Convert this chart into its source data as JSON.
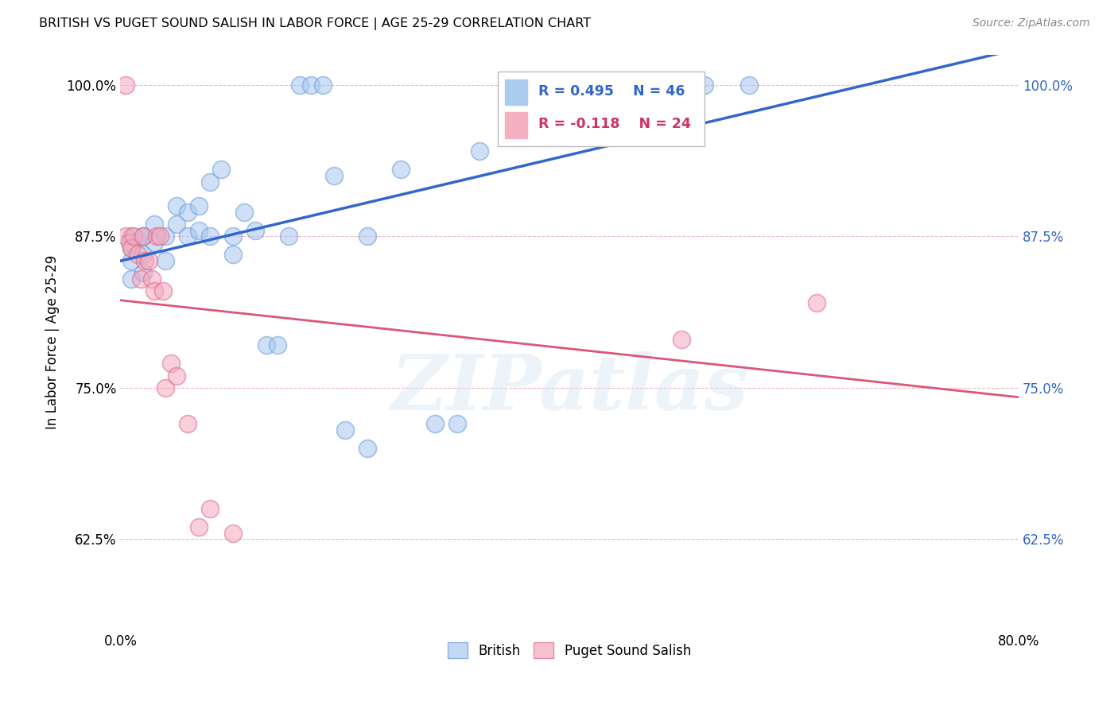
{
  "title": "BRITISH VS PUGET SOUND SALISH IN LABOR FORCE | AGE 25-29 CORRELATION CHART",
  "source": "Source: ZipAtlas.com",
  "ylabel": "In Labor Force | Age 25-29",
  "watermark": "ZIPatlas",
  "xlim": [
    0.0,
    0.8
  ],
  "ylim": [
    0.55,
    1.025
  ],
  "xticks": [
    0.0,
    0.1,
    0.2,
    0.3,
    0.4,
    0.5,
    0.6,
    0.7,
    0.8
  ],
  "xticklabels": [
    "0.0%",
    "",
    "",
    "",
    "",
    "",
    "",
    "",
    "80.0%"
  ],
  "yticks": [
    0.625,
    0.75,
    0.875,
    1.0
  ],
  "yticklabels": [
    "62.5%",
    "75.0%",
    "87.5%",
    "100.0%"
  ],
  "blue_R": 0.495,
  "blue_N": 46,
  "pink_R": -0.118,
  "pink_N": 24,
  "blue_color": "#a8c8f0",
  "pink_color": "#f4a8bc",
  "blue_line_color": "#3366cc",
  "pink_line_color": "#dd5577",
  "legend_label_british": "British",
  "legend_label_salish": "Puget Sound Salish",
  "blue_x": [
    0.01,
    0.01,
    0.01,
    0.01,
    0.02,
    0.02,
    0.02,
    0.02,
    0.03,
    0.03,
    0.04,
    0.04,
    0.05,
    0.05,
    0.06,
    0.06,
    0.07,
    0.07,
    0.08,
    0.08,
    0.09,
    0.1,
    0.1,
    0.11,
    0.12,
    0.13,
    0.14,
    0.15,
    0.16,
    0.17,
    0.18,
    0.19,
    0.2,
    0.22,
    0.22,
    0.25,
    0.28,
    0.3,
    0.32,
    0.36,
    0.38,
    0.4,
    0.42,
    0.5,
    0.52,
    0.56
  ],
  "blue_y": [
    0.875,
    0.865,
    0.855,
    0.84,
    0.875,
    0.86,
    0.845,
    0.875,
    0.885,
    0.87,
    0.875,
    0.855,
    0.9,
    0.885,
    0.895,
    0.875,
    0.9,
    0.88,
    0.92,
    0.875,
    0.93,
    0.875,
    0.86,
    0.895,
    0.88,
    0.785,
    0.785,
    0.875,
    1.0,
    1.0,
    1.0,
    0.925,
    0.715,
    0.7,
    0.875,
    0.93,
    0.72,
    0.72,
    0.945,
    1.0,
    1.0,
    1.0,
    1.0,
    1.0,
    1.0,
    1.0
  ],
  "pink_x": [
    0.005,
    0.005,
    0.008,
    0.01,
    0.012,
    0.015,
    0.018,
    0.02,
    0.022,
    0.025,
    0.028,
    0.03,
    0.032,
    0.035,
    0.038,
    0.04,
    0.045,
    0.05,
    0.06,
    0.07,
    0.08,
    0.1,
    0.5,
    0.62
  ],
  "pink_y": [
    1.0,
    0.875,
    0.87,
    0.865,
    0.875,
    0.86,
    0.84,
    0.875,
    0.855,
    0.855,
    0.84,
    0.83,
    0.875,
    0.875,
    0.83,
    0.75,
    0.77,
    0.76,
    0.72,
    0.635,
    0.65,
    0.63,
    0.79,
    0.82
  ]
}
